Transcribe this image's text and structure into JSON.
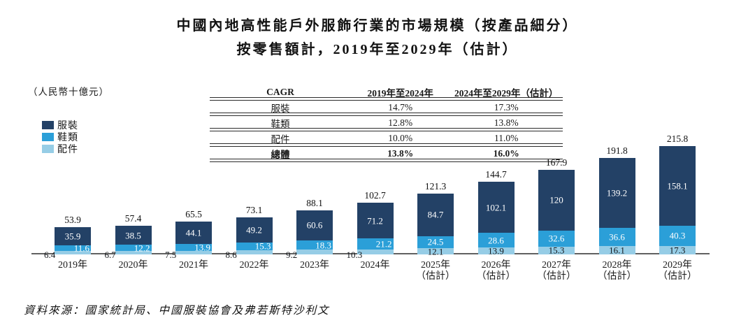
{
  "title": {
    "line1": "中國內地高性能戶外服飾行業的市場規模（按產品細分）",
    "line2": "按零售額計，2019年至2029年（估計）"
  },
  "unit_label": "（人民幣十億元）",
  "legend": [
    {
      "label": "服裝",
      "color": "#234166"
    },
    {
      "label": "鞋類",
      "color": "#2b9fd8"
    },
    {
      "label": "配件",
      "color": "#96cde6"
    }
  ],
  "cagr_table": {
    "headers": [
      "CAGR",
      "2019年至2024年",
      "2024年至2029年（估計）"
    ],
    "rows": [
      {
        "label": "服裝",
        "period1": "14.7%",
        "period2": "17.3%",
        "bold": false
      },
      {
        "label": "鞋類",
        "period1": "12.8%",
        "period2": "13.8%",
        "bold": false
      },
      {
        "label": "配件",
        "period1": "10.0%",
        "period2": "11.0%",
        "bold": false
      },
      {
        "label": "總體",
        "period1": "13.8%",
        "period2": "16.0%",
        "bold": true
      }
    ]
  },
  "chart_data": {
    "type": "bar",
    "stacked": true,
    "title": "中國內地高性能戶外服飾行業的市場規模（按產品細分），按零售額計，2019年至2029年（估計）",
    "ylabel": "（人民幣十億元）",
    "xlabel": "",
    "grid": false,
    "legend_position": "left",
    "ylim": [
      0,
      230
    ],
    "categories": [
      {
        "label": "2019年",
        "sub": ""
      },
      {
        "label": "2020年",
        "sub": ""
      },
      {
        "label": "2021年",
        "sub": ""
      },
      {
        "label": "2022年",
        "sub": ""
      },
      {
        "label": "2023年",
        "sub": ""
      },
      {
        "label": "2024年",
        "sub": ""
      },
      {
        "label": "2025年",
        "sub": "（估計）"
      },
      {
        "label": "2026年",
        "sub": "（估計）"
      },
      {
        "label": "2027年",
        "sub": "（估計）"
      },
      {
        "label": "2028年",
        "sub": "（估計）"
      },
      {
        "label": "2029年",
        "sub": "（估計）"
      }
    ],
    "estimate_from_index": 6,
    "series": [
      {
        "name": "服裝",
        "semantic": "apparel",
        "color": "#234166",
        "label_color": "#ffffff",
        "values": [
          35.9,
          38.5,
          44.1,
          49.2,
          60.6,
          71.2,
          84.7,
          102.1,
          120.0,
          139.2,
          158.1
        ]
      },
      {
        "name": "鞋類",
        "semantic": "footwear",
        "color": "#2b9fd8",
        "label_color": "#ffffff",
        "values": [
          11.6,
          12.2,
          13.9,
          15.3,
          18.3,
          21.2,
          24.5,
          28.6,
          32.6,
          36.6,
          40.3
        ]
      },
      {
        "name": "配件",
        "semantic": "accessories",
        "color": "#96cde6",
        "label_color": "#16191d",
        "values": [
          6.4,
          6.7,
          7.5,
          8.6,
          9.2,
          10.3,
          12.1,
          13.9,
          15.3,
          16.1,
          17.3
        ]
      }
    ],
    "totals": [
      53.9,
      57.4,
      65.5,
      73.1,
      88.1,
      102.7,
      121.3,
      144.7,
      167.9,
      191.8,
      215.8
    ]
  },
  "source": "資料來源：國家統計局、中國服裝協會及弗若斯特沙利文"
}
